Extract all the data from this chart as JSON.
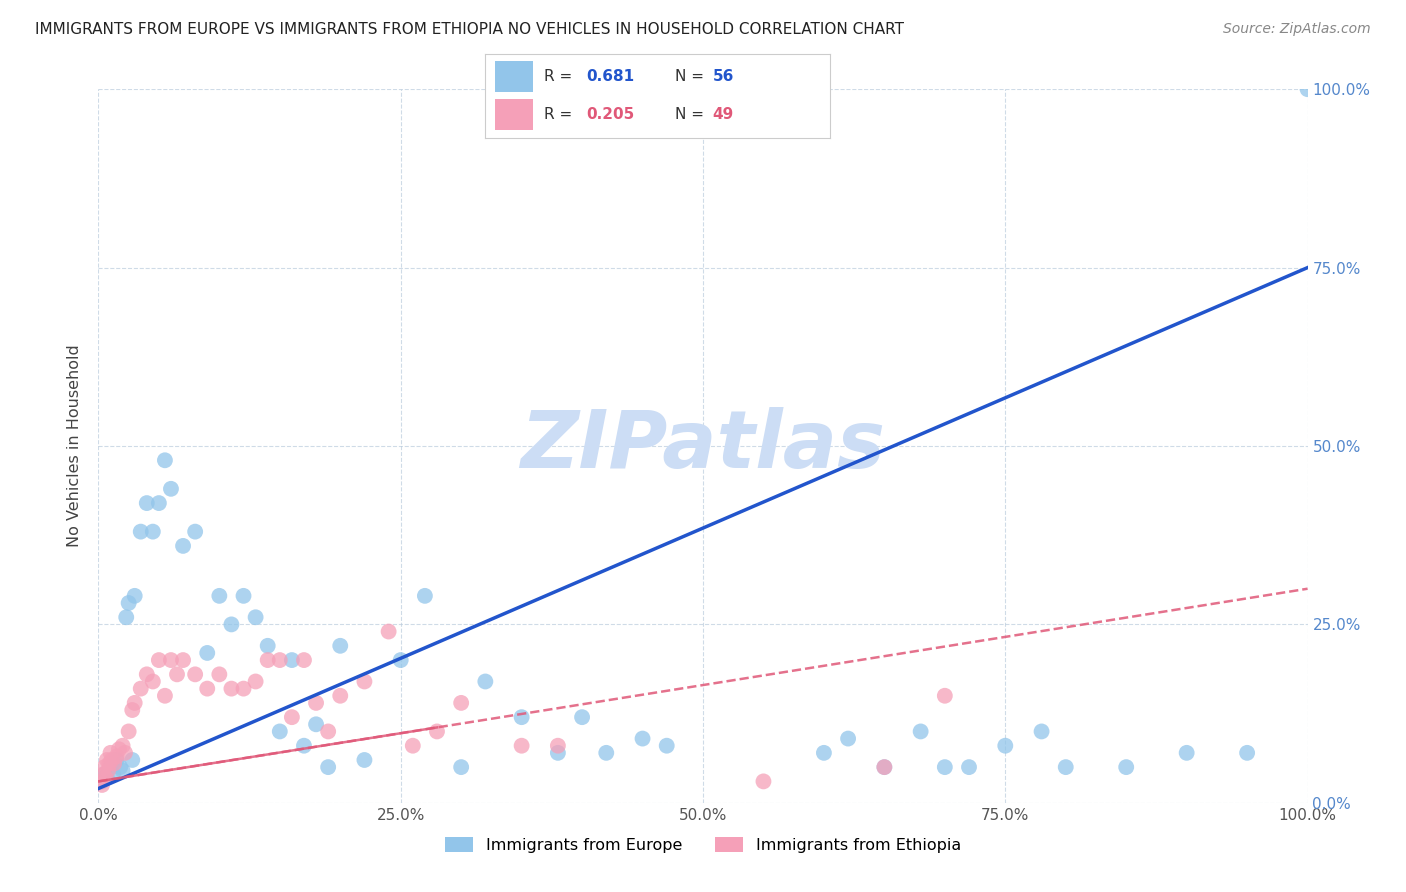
{
  "title": "IMMIGRANTS FROM EUROPE VS IMMIGRANTS FROM ETHIOPIA NO VEHICLES IN HOUSEHOLD CORRELATION CHART",
  "source": "Source: ZipAtlas.com",
  "ylabel": "No Vehicles in Household",
  "xlabel_europe": "Immigrants from Europe",
  "xlabel_ethiopia": "Immigrants from Ethiopia",
  "xlim": [
    0,
    100
  ],
  "ylim": [
    0,
    100
  ],
  "xticks": [
    0,
    25,
    50,
    75,
    100
  ],
  "yticks": [
    0,
    25,
    50,
    75,
    100
  ],
  "xtick_labels": [
    "0.0%",
    "25.0%",
    "50.0%",
    "75.0%",
    "100.0%"
  ],
  "ytick_labels": [
    "0.0%",
    "25.0%",
    "50.0%",
    "75.0%",
    "100.0%"
  ],
  "europe_R": 0.681,
  "europe_N": 56,
  "ethiopia_R": 0.205,
  "ethiopia_N": 49,
  "europe_color": "#92C5EA",
  "ethiopia_color": "#F5A0B8",
  "europe_line_color": "#2255CC",
  "ethiopia_line_color": "#E05878",
  "watermark": "ZIPatlas",
  "watermark_color": "#CCDDF5",
  "europe_line_start_y": 2.0,
  "europe_line_end_y": 75.0,
  "ethiopia_line_start_y": 3.0,
  "ethiopia_line_end_y": 30.0,
  "europe_x": [
    0.3,
    0.5,
    0.7,
    1.0,
    1.2,
    1.5,
    1.8,
    2.0,
    2.3,
    2.5,
    2.8,
    3.0,
    3.5,
    4.0,
    4.5,
    5.0,
    5.5,
    6.0,
    7.0,
    8.0,
    9.0,
    10.0,
    11.0,
    12.0,
    13.0,
    14.0,
    15.0,
    16.0,
    17.0,
    18.0,
    19.0,
    20.0,
    22.0,
    25.0,
    27.0,
    30.0,
    32.0,
    35.0,
    38.0,
    40.0,
    42.0,
    45.0,
    47.0,
    60.0,
    62.0,
    65.0,
    68.0,
    70.0,
    72.0,
    75.0,
    78.0,
    80.0,
    85.0,
    90.0,
    95.0,
    100.0
  ],
  "europe_y": [
    3.0,
    4.0,
    3.5,
    5.0,
    4.0,
    6.0,
    5.0,
    4.5,
    26.0,
    28.0,
    6.0,
    29.0,
    38.0,
    42.0,
    38.0,
    42.0,
    48.0,
    44.0,
    36.0,
    38.0,
    21.0,
    29.0,
    25.0,
    29.0,
    26.0,
    22.0,
    10.0,
    20.0,
    8.0,
    11.0,
    5.0,
    22.0,
    6.0,
    20.0,
    29.0,
    5.0,
    17.0,
    12.0,
    7.0,
    12.0,
    7.0,
    9.0,
    8.0,
    7.0,
    9.0,
    5.0,
    10.0,
    5.0,
    5.0,
    8.0,
    10.0,
    5.0,
    5.0,
    7.0,
    7.0,
    100.0
  ],
  "ethiopia_x": [
    0.2,
    0.3,
    0.4,
    0.5,
    0.6,
    0.7,
    0.8,
    0.9,
    1.0,
    1.1,
    1.3,
    1.5,
    1.7,
    2.0,
    2.2,
    2.5,
    2.8,
    3.0,
    3.5,
    4.0,
    4.5,
    5.0,
    5.5,
    6.0,
    6.5,
    7.0,
    8.0,
    9.0,
    10.0,
    11.0,
    12.0,
    13.0,
    14.0,
    15.0,
    16.0,
    17.0,
    18.0,
    19.0,
    20.0,
    22.0,
    24.0,
    26.0,
    28.0,
    30.0,
    35.0,
    38.0,
    55.0,
    65.0,
    70.0
  ],
  "ethiopia_y": [
    3.0,
    2.5,
    4.0,
    5.0,
    3.5,
    6.0,
    4.5,
    5.5,
    7.0,
    6.0,
    5.5,
    6.5,
    7.5,
    8.0,
    7.0,
    10.0,
    13.0,
    14.0,
    16.0,
    18.0,
    17.0,
    20.0,
    15.0,
    20.0,
    18.0,
    20.0,
    18.0,
    16.0,
    18.0,
    16.0,
    16.0,
    17.0,
    20.0,
    20.0,
    12.0,
    20.0,
    14.0,
    10.0,
    15.0,
    17.0,
    24.0,
    8.0,
    10.0,
    14.0,
    8.0,
    8.0,
    3.0,
    5.0,
    15.0
  ]
}
